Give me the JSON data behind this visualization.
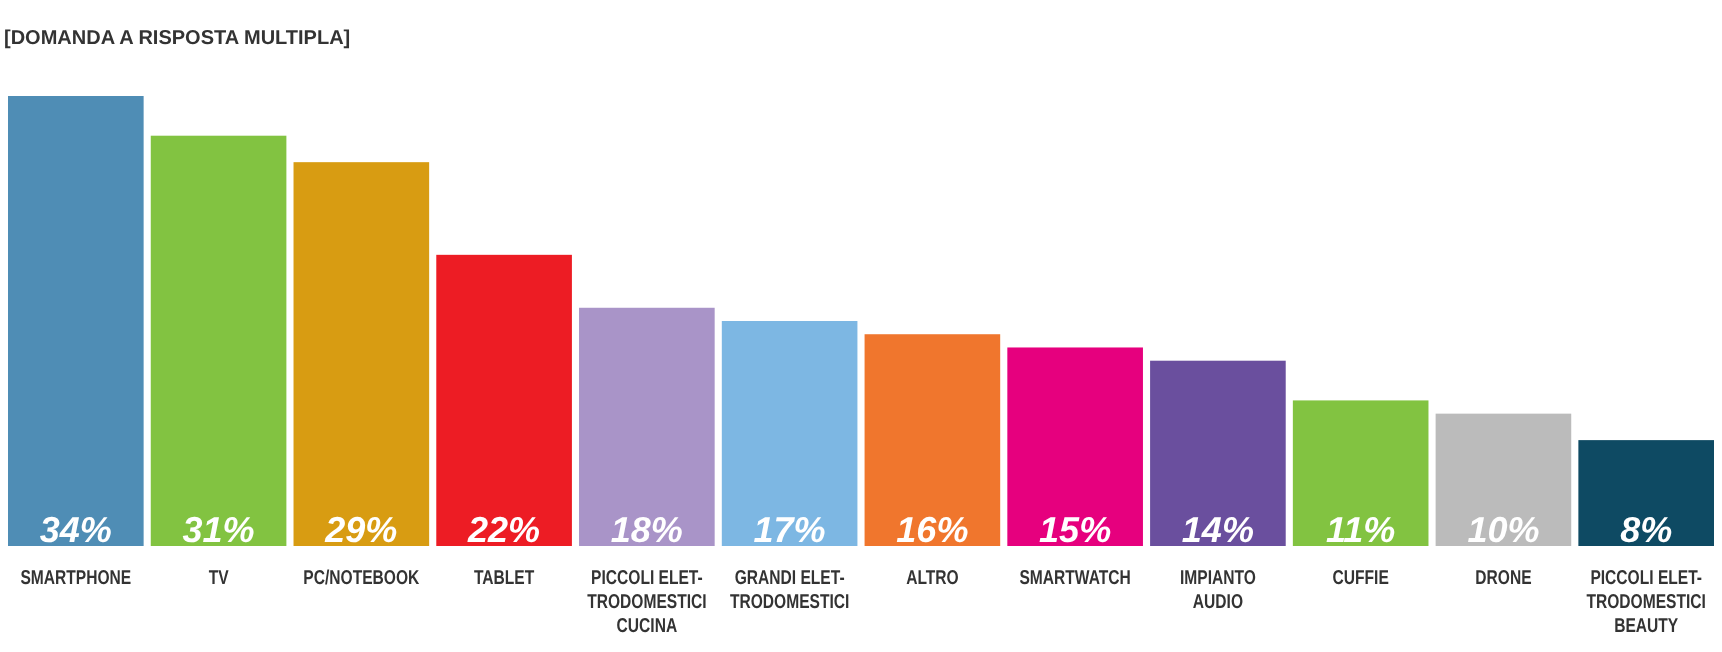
{
  "chart_data": {
    "type": "bar",
    "title": "[DOMANDA A RISPOSTA MULTIPLA]",
    "categories": [
      "SMARTPHONE",
      "TV",
      "PC/NOTEBOOK",
      "TABLET",
      "PICCOLI ELET-\nTRODOMESTICI\nCUCINA",
      "GRANDI ELET-\nTRODOMESTICI",
      "ALTRO",
      "SMARTWATCH",
      "IMPIANTO\nAUDIO",
      "CUFFIE",
      "DRONE",
      "PICCOLI ELET-\nTRODOMESTICI\nBEAUTY"
    ],
    "values": [
      34,
      31,
      29,
      22,
      18,
      17,
      16,
      15,
      14,
      11,
      10,
      8
    ],
    "value_labels": [
      "34%",
      "31%",
      "29%",
      "22%",
      "18%",
      "17%",
      "16%",
      "15%",
      "14%",
      "11%",
      "10%",
      "8%"
    ],
    "colors": [
      "#4f8db5",
      "#82c341",
      "#d89c12",
      "#ed1c24",
      "#a994c8",
      "#7db7e3",
      "#f0762d",
      "#e6007e",
      "#6a4f9e",
      "#82c341",
      "#bbbbbb",
      "#0e4a63"
    ]
  }
}
